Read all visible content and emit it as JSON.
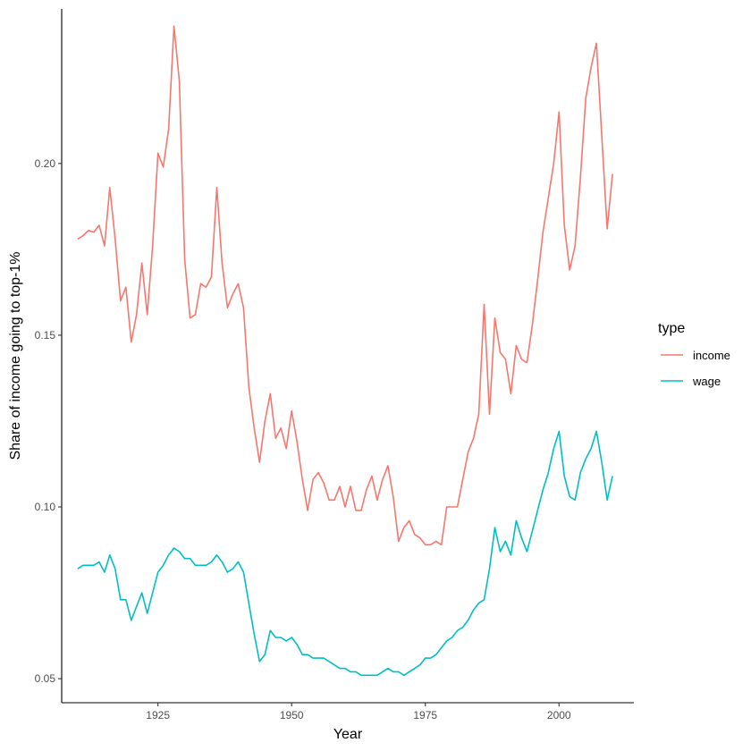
{
  "chart_data": {
    "type": "line",
    "title": "",
    "xlabel": "Year",
    "ylabel": "Share of income going to top-1%",
    "xlim": [
      1907,
      2014
    ],
    "ylim": [
      0.043,
      0.245
    ],
    "xticks": [
      1925,
      1950,
      1975,
      2000
    ],
    "yticks": [
      0.05,
      0.1,
      0.15,
      0.2
    ],
    "ytick_labels": [
      "0.05",
      "0.10",
      "0.15",
      "0.20"
    ],
    "grid": false,
    "legend": {
      "title": "type",
      "position": "right"
    },
    "x": [
      1910,
      1911,
      1912,
      1913,
      1914,
      1915,
      1916,
      1917,
      1918,
      1919,
      1920,
      1921,
      1922,
      1923,
      1924,
      1925,
      1926,
      1927,
      1928,
      1929,
      1930,
      1931,
      1932,
      1933,
      1934,
      1935,
      1936,
      1937,
      1938,
      1939,
      1940,
      1941,
      1942,
      1943,
      1944,
      1945,
      1946,
      1947,
      1948,
      1949,
      1950,
      1951,
      1952,
      1953,
      1954,
      1955,
      1956,
      1957,
      1958,
      1959,
      1960,
      1961,
      1962,
      1963,
      1964,
      1965,
      1966,
      1967,
      1968,
      1969,
      1970,
      1971,
      1972,
      1973,
      1974,
      1975,
      1976,
      1977,
      1978,
      1979,
      1980,
      1981,
      1982,
      1983,
      1984,
      1985,
      1986,
      1987,
      1988,
      1989,
      1990,
      1991,
      1992,
      1993,
      1994,
      1995,
      1996,
      1997,
      1998,
      1999,
      2000,
      2001,
      2002,
      2003,
      2004,
      2005,
      2006,
      2007,
      2008,
      2009,
      2010
    ],
    "series": [
      {
        "name": "income",
        "color": "#F8766D",
        "values": [
          0.178,
          0.179,
          0.1805,
          0.18,
          0.182,
          0.176,
          0.193,
          0.178,
          0.16,
          0.164,
          0.148,
          0.156,
          0.171,
          0.156,
          0.176,
          0.203,
          0.199,
          0.21,
          0.24,
          0.224,
          0.172,
          0.155,
          0.156,
          0.165,
          0.164,
          0.167,
          0.193,
          0.171,
          0.158,
          0.162,
          0.165,
          0.158,
          0.135,
          0.123,
          0.113,
          0.125,
          0.133,
          0.12,
          0.123,
          0.117,
          0.128,
          0.119,
          0.108,
          0.099,
          0.108,
          0.11,
          0.107,
          0.102,
          0.102,
          0.106,
          0.1,
          0.106,
          0.099,
          0.099,
          0.105,
          0.109,
          0.102,
          0.108,
          0.112,
          0.103,
          0.09,
          0.094,
          0.096,
          0.092,
          0.091,
          0.089,
          0.089,
          0.09,
          0.089,
          0.1,
          0.1,
          0.1,
          0.108,
          0.116,
          0.12,
          0.127,
          0.159,
          0.127,
          0.155,
          0.145,
          0.143,
          0.133,
          0.147,
          0.143,
          0.142,
          0.153,
          0.166,
          0.18,
          0.19,
          0.2,
          0.215,
          0.182,
          0.169,
          0.176,
          0.196,
          0.219,
          0.228,
          0.235,
          0.208,
          0.181,
          0.197
        ]
      },
      {
        "name": "wage",
        "color": "#00BFC4",
        "values": [
          0.082,
          0.083,
          0.083,
          0.083,
          0.084,
          0.081,
          0.086,
          0.082,
          0.073,
          0.073,
          0.067,
          0.071,
          0.075,
          0.069,
          0.075,
          0.081,
          0.083,
          0.086,
          0.088,
          0.087,
          0.085,
          0.085,
          0.083,
          0.083,
          0.083,
          0.084,
          0.086,
          0.084,
          0.081,
          0.082,
          0.084,
          0.081,
          0.072,
          0.063,
          0.055,
          0.057,
          0.064,
          0.062,
          0.062,
          0.061,
          0.062,
          0.06,
          0.057,
          0.057,
          0.056,
          0.056,
          0.056,
          0.055,
          0.054,
          0.053,
          0.053,
          0.052,
          0.052,
          0.051,
          0.051,
          0.051,
          0.051,
          0.052,
          0.053,
          0.052,
          0.052,
          0.051,
          0.052,
          0.053,
          0.054,
          0.056,
          0.056,
          0.057,
          0.059,
          0.061,
          0.062,
          0.064,
          0.065,
          0.067,
          0.07,
          0.072,
          0.073,
          0.082,
          0.094,
          0.087,
          0.09,
          0.086,
          0.096,
          0.091,
          0.087,
          0.093,
          0.099,
          0.105,
          0.11,
          0.117,
          0.122,
          0.109,
          0.103,
          0.102,
          0.11,
          0.114,
          0.117,
          0.122,
          0.113,
          0.102,
          0.109
        ]
      }
    ]
  }
}
